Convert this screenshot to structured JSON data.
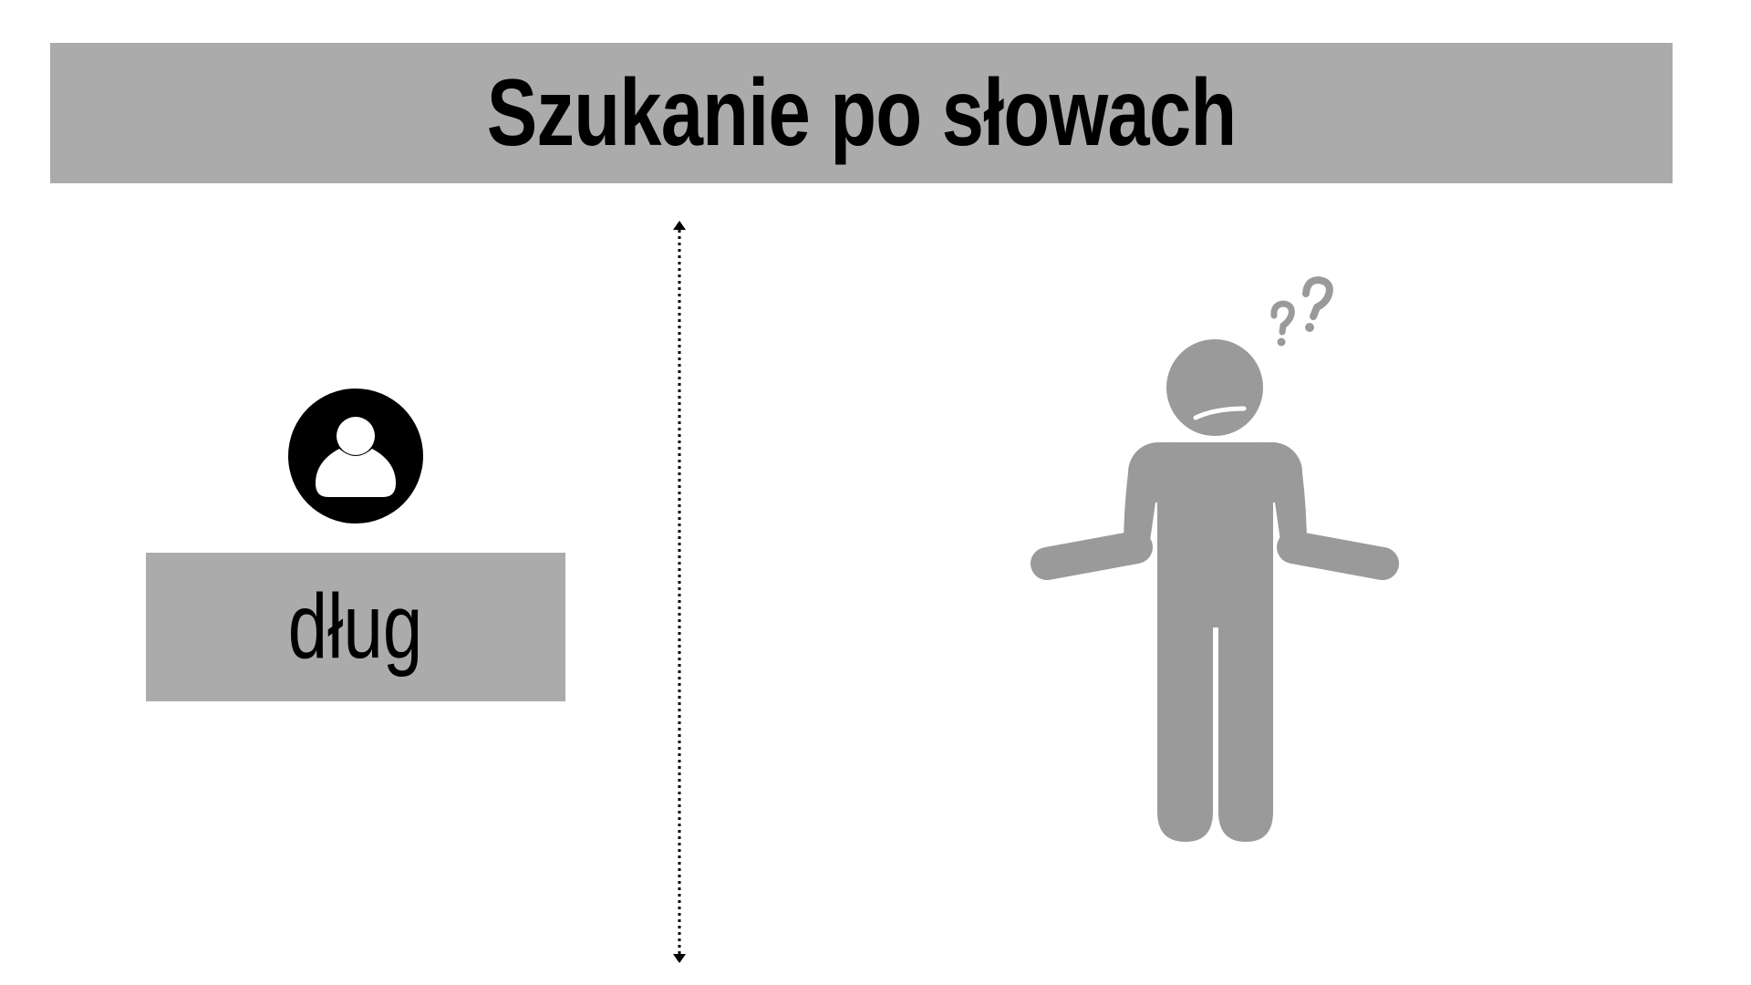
{
  "header": {
    "title": "Szukanie po słowach"
  },
  "left_panel": {
    "icon": "user-circle-icon",
    "word": "dług"
  },
  "divider": {
    "style": "dotted-double-arrow"
  },
  "right_panel": {
    "icon": "confused-person-icon",
    "question_marks": "??"
  },
  "colors": {
    "panel_gray": "#ababab",
    "figure_gray": "#9a9a9a",
    "text": "#000000",
    "background": "#ffffff"
  }
}
